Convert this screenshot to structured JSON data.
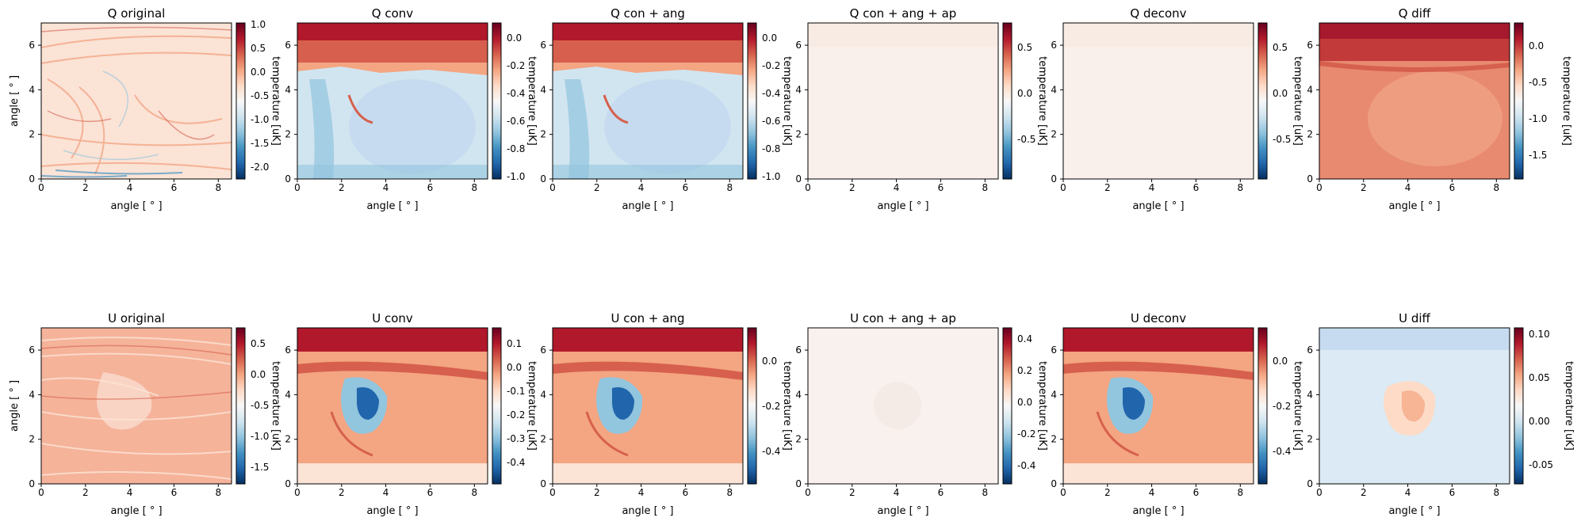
{
  "figure": {
    "title_q_original": "Q original",
    "title_q_conv": "Q conv",
    "title_q_con_ang": "Q con + ang",
    "title_q_con_ang_ap": "Q con + ang + ap",
    "title_q_deconv": "Q deconv",
    "title_q_diff": "Q diff",
    "title_u_original": "U original",
    "title_u_conv": "U conv",
    "title_u_con_ang": "U con + ang",
    "title_u_con_ang_ap": "U con + ang + ap",
    "title_u_deconv": "U deconv",
    "title_u_diff": "U diff",
    "xlabel": "angle [$^\\circ$]",
    "ylabel": "angle [$^\\circ$]",
    "colorbar_label": "temperature [uK]"
  },
  "chart_data": [
    {
      "type": "heatmap",
      "title": "Q original",
      "xlabel": "angle [$^\\circ$]",
      "ylabel": "angle [$^\\circ$]",
      "xticks": [
        "0",
        "2",
        "4",
        "6",
        "8"
      ],
      "yticks": [
        "0",
        "2",
        "4",
        "6"
      ],
      "xlim": [
        0,
        8.6
      ],
      "ylim": [
        0,
        7
      ],
      "colormap": "RdBu_r",
      "colorbar_label": "temperature [uK]",
      "colorbar_ticks": [
        "1.0",
        "0.5",
        "0.0",
        "-0.5",
        "-1.0",
        "-1.5",
        "-2.0"
      ],
      "vmin": -2.2,
      "vmax": 1.1
    },
    {
      "type": "heatmap",
      "title": "Q conv",
      "xlabel": "angle [$^\\circ$]",
      "ylabel": "angle [$^\\circ$]",
      "xticks": [
        "0",
        "2",
        "4",
        "6",
        "8"
      ],
      "yticks": [
        "0",
        "2",
        "4",
        "6"
      ],
      "xlim": [
        0,
        8.6
      ],
      "ylim": [
        0,
        7
      ],
      "colormap": "RdBu_r",
      "colorbar_label": "temperature [uK]",
      "colorbar_ticks": [
        "0.0",
        "-0.2",
        "-0.4",
        "-0.6",
        "-0.8",
        "-1.0"
      ],
      "vmin": -1.0,
      "vmax": 0.12
    },
    {
      "type": "heatmap",
      "title": "Q con + ang",
      "xlabel": "angle [$^\\circ$]",
      "ylabel": "angle [$^\\circ$]",
      "xticks": [
        "0",
        "2",
        "4",
        "6",
        "8"
      ],
      "yticks": [
        "0",
        "2",
        "4",
        "6"
      ],
      "xlim": [
        0,
        8.6
      ],
      "ylim": [
        0,
        7
      ],
      "colormap": "RdBu_r",
      "colorbar_label": "temperature [uK]",
      "colorbar_ticks": [
        "0.0",
        "-0.2",
        "-0.4",
        "-0.6",
        "-0.8",
        "-1.0"
      ],
      "vmin": -1.0,
      "vmax": 0.12
    },
    {
      "type": "heatmap",
      "title": "Q con + ang + ap",
      "xlabel": "angle [$^\\circ$]",
      "ylabel": "angle [$^\\circ$]",
      "xticks": [
        "0",
        "2",
        "4",
        "6",
        "8"
      ],
      "yticks": [
        "0",
        "2",
        "4",
        "6"
      ],
      "xlim": [
        0,
        8.6
      ],
      "ylim": [
        0,
        7
      ],
      "colormap": "RdBu_r",
      "colorbar_label": "temperature [uK]",
      "colorbar_ticks": [
        "0.5",
        "0.0",
        "-0.5"
      ],
      "vmin": -0.9,
      "vmax": 0.8
    },
    {
      "type": "heatmap",
      "title": "Q deconv",
      "xlabel": "angle [$^\\circ$]",
      "ylabel": "angle [$^\\circ$]",
      "xticks": [
        "0",
        "2",
        "4",
        "6",
        "8"
      ],
      "yticks": [
        "0",
        "2",
        "4",
        "6"
      ],
      "xlim": [
        0,
        8.6
      ],
      "ylim": [
        0,
        7
      ],
      "colormap": "RdBu_r",
      "colorbar_label": "temperature [uK]",
      "colorbar_ticks": [
        "0.5",
        "0.0",
        "-0.5"
      ],
      "vmin": -0.9,
      "vmax": 0.8
    },
    {
      "type": "heatmap",
      "title": "Q diff",
      "xlabel": "angle [$^\\circ$]",
      "ylabel": "angle [$^\\circ$]",
      "xticks": [
        "0",
        "2",
        "4",
        "6",
        "8"
      ],
      "yticks": [
        "0",
        "2",
        "4",
        "6"
      ],
      "xlim": [
        0,
        8.6
      ],
      "ylim": [
        0,
        7
      ],
      "colormap": "RdBu_r",
      "colorbar_label": "temperature [uK]",
      "colorbar_ticks": [
        "0.0",
        "-0.5",
        "-1.0",
        "-1.5"
      ],
      "vmin": -1.8,
      "vmax": 0.35
    },
    {
      "type": "heatmap",
      "title": "U original",
      "xlabel": "angle [$^\\circ$]",
      "ylabel": "angle [$^\\circ$]",
      "xticks": [
        "0",
        "2",
        "4",
        "6",
        "8"
      ],
      "yticks": [
        "0",
        "2",
        "4",
        "6"
      ],
      "xlim": [
        0,
        8.6
      ],
      "ylim": [
        0,
        7
      ],
      "colormap": "RdBu_r",
      "colorbar_label": "temperature [uK]",
      "colorbar_ticks": [
        "0.5",
        "0.0",
        "-0.5",
        "-1.0",
        "-1.5"
      ],
      "vmin": -1.8,
      "vmax": 0.75
    },
    {
      "type": "heatmap",
      "title": "U conv",
      "xlabel": "angle [$^\\circ$]",
      "ylabel": "angle [$^\\circ$]",
      "xticks": [
        "0",
        "2",
        "4",
        "6",
        "8"
      ],
      "yticks": [
        "0",
        "2",
        "4",
        "6"
      ],
      "xlim": [
        0,
        8.6
      ],
      "ylim": [
        0,
        7
      ],
      "colormap": "RdBu_r",
      "colorbar_label": "temperature [uK]",
      "colorbar_ticks": [
        "0.1",
        "0.0",
        "-0.1",
        "-0.2",
        "-0.3",
        "-0.4"
      ],
      "vmin": -0.5,
      "vmax": 0.16
    },
    {
      "type": "heatmap",
      "title": "U con + ang",
      "xlabel": "angle [$^\\circ$]",
      "ylabel": "angle [$^\\circ$]",
      "xticks": [
        "0",
        "2",
        "4",
        "6",
        "8"
      ],
      "yticks": [
        "0",
        "2",
        "4",
        "6"
      ],
      "xlim": [
        0,
        8.6
      ],
      "ylim": [
        0,
        7
      ],
      "colormap": "RdBu_r",
      "colorbar_label": "temperature [uK]",
      "colorbar_ticks": [
        "0.0",
        "-0.2",
        "-0.4"
      ],
      "vmin": -0.55,
      "vmax": 0.14
    },
    {
      "type": "heatmap",
      "title": "U con + ang + ap",
      "xlabel": "angle [$^\\circ$]",
      "ylabel": "angle [$^\\circ$]",
      "xticks": [
        "0",
        "2",
        "4",
        "6",
        "8"
      ],
      "yticks": [
        "0",
        "2",
        "4",
        "6"
      ],
      "xlim": [
        0,
        8.6
      ],
      "ylim": [
        0,
        7
      ],
      "colormap": "RdBu_r",
      "colorbar_label": "temperature [uK]",
      "colorbar_ticks": [
        "0.4",
        "0.2",
        "0.0",
        "-0.2",
        "-0.4"
      ],
      "vmin": -0.5,
      "vmax": 0.48
    },
    {
      "type": "heatmap",
      "title": "U deconv",
      "xlabel": "angle [$^\\circ$]",
      "ylabel": "angle [$^\\circ$]",
      "xticks": [
        "0",
        "2",
        "4",
        "6",
        "8"
      ],
      "yticks": [
        "0",
        "2",
        "4",
        "6"
      ],
      "xlim": [
        0,
        8.6
      ],
      "ylim": [
        0,
        7
      ],
      "colormap": "RdBu_r",
      "colorbar_label": "temperature [uK]",
      "colorbar_ticks": [
        "0.0",
        "-0.2",
        "-0.4"
      ],
      "vmin": -0.55,
      "vmax": 0.14
    },
    {
      "type": "heatmap",
      "title": "U diff",
      "xlabel": "angle [$^\\circ$]",
      "ylabel": "angle [$^\\circ$]",
      "xticks": [
        "0",
        "2",
        "4",
        "6",
        "8"
      ],
      "yticks": [
        "0",
        "2",
        "4",
        "6"
      ],
      "xlim": [
        0,
        8.6
      ],
      "ylim": [
        0,
        7
      ],
      "colormap": "RdBu_r",
      "colorbar_label": "temperature [uK]",
      "colorbar_ticks": [
        "0.10",
        "0.05",
        "0.00",
        "-0.05"
      ],
      "vmin": -0.075,
      "vmax": 0.11
    }
  ]
}
